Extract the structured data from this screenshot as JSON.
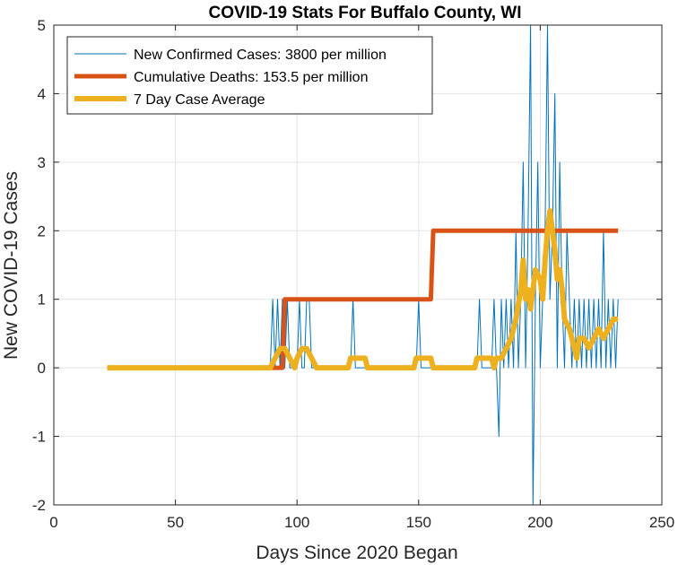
{
  "chart_data": {
    "type": "line",
    "title": "COVID-19 Stats For Buffalo County, WI",
    "xlabel": "Days Since 2020 Began",
    "ylabel": "New COVID-19 Cases",
    "xlim": [
      0,
      250
    ],
    "ylim": [
      -2,
      5
    ],
    "xticks": [
      0,
      50,
      100,
      150,
      200,
      250
    ],
    "yticks": [
      -2,
      -1,
      0,
      1,
      2,
      3,
      4,
      5
    ],
    "grid": true,
    "legend_position": "top-left",
    "series": [
      {
        "name": "New Confirmed Cases: 3800 per million",
        "color": "#0072BD",
        "points": [
          [
            22,
            0
          ],
          [
            89,
            0
          ],
          [
            90,
            1
          ],
          [
            91,
            0
          ],
          [
            92,
            1
          ],
          [
            93,
            0
          ],
          [
            94,
            1
          ],
          [
            95,
            0
          ],
          [
            96,
            1
          ],
          [
            97,
            0
          ],
          [
            100,
            0
          ],
          [
            101,
            1
          ],
          [
            102,
            0
          ],
          [
            103,
            0
          ],
          [
            104,
            1
          ],
          [
            105,
            1
          ],
          [
            106,
            0
          ],
          [
            122,
            0
          ],
          [
            123,
            1
          ],
          [
            124,
            0
          ],
          [
            149,
            0
          ],
          [
            150,
            1
          ],
          [
            151,
            0
          ],
          [
            174,
            0
          ],
          [
            175,
            1
          ],
          [
            176,
            0
          ],
          [
            180,
            0
          ],
          [
            181,
            1
          ],
          [
            182,
            0
          ],
          [
            183,
            -1
          ],
          [
            184,
            1
          ],
          [
            185,
            0
          ],
          [
            186,
            1
          ],
          [
            187,
            0
          ],
          [
            188,
            1
          ],
          [
            189,
            0
          ],
          [
            190,
            2
          ],
          [
            191,
            0
          ],
          [
            192,
            1
          ],
          [
            193,
            3
          ],
          [
            194,
            0
          ],
          [
            195,
            2
          ],
          [
            196,
            5
          ],
          [
            197,
            -2
          ],
          [
            198,
            1
          ],
          [
            199,
            3
          ],
          [
            200,
            0
          ],
          [
            201,
            1
          ],
          [
            202,
            2
          ],
          [
            203,
            5
          ],
          [
            204,
            1
          ],
          [
            205,
            2
          ],
          [
            206,
            4
          ],
          [
            207,
            0
          ],
          [
            208,
            3
          ],
          [
            209,
            1
          ],
          [
            210,
            0
          ],
          [
            211,
            2
          ],
          [
            212,
            1
          ],
          [
            213,
            0
          ],
          [
            214,
            1
          ],
          [
            215,
            0
          ],
          [
            216,
            1
          ],
          [
            217,
            0
          ],
          [
            218,
            1
          ],
          [
            219,
            0
          ],
          [
            220,
            1
          ],
          [
            221,
            0
          ],
          [
            222,
            1
          ],
          [
            223,
            0
          ],
          [
            224,
            1
          ],
          [
            225,
            0
          ],
          [
            226,
            2
          ],
          [
            227,
            0
          ],
          [
            228,
            1
          ],
          [
            229,
            0
          ],
          [
            230,
            1
          ],
          [
            231,
            0
          ],
          [
            232,
            1
          ]
        ]
      },
      {
        "name": "Cumulative Deaths: 153.5 per million",
        "color": "#D95319",
        "points": [
          [
            22,
            0
          ],
          [
            94,
            0
          ],
          [
            95,
            1
          ],
          [
            155,
            1
          ],
          [
            156,
            2
          ],
          [
            232,
            2
          ]
        ]
      },
      {
        "name": "7 Day Case Average",
        "color": "#EDB120",
        "points": [
          [
            22,
            0
          ],
          [
            89,
            0
          ],
          [
            91,
            0.14
          ],
          [
            93,
            0.28
          ],
          [
            95,
            0.28
          ],
          [
            97,
            0.14
          ],
          [
            99,
            0
          ],
          [
            100,
            0.14
          ],
          [
            102,
            0.28
          ],
          [
            104,
            0.28
          ],
          [
            106,
            0.14
          ],
          [
            108,
            0
          ],
          [
            121,
            0
          ],
          [
            122,
            0.14
          ],
          [
            128,
            0.14
          ],
          [
            129,
            0
          ],
          [
            148,
            0
          ],
          [
            149,
            0.14
          ],
          [
            155,
            0.14
          ],
          [
            156,
            0
          ],
          [
            173,
            0
          ],
          [
            174,
            0.14
          ],
          [
            180,
            0.14
          ],
          [
            181,
            0
          ],
          [
            182,
            0.14
          ],
          [
            184,
            0.14
          ],
          [
            186,
            0.28
          ],
          [
            188,
            0.43
          ],
          [
            190,
            0.71
          ],
          [
            192,
            1.14
          ],
          [
            193,
            1.57
          ],
          [
            194,
            1.0
          ],
          [
            195,
            1.14
          ],
          [
            196,
            0.86
          ],
          [
            198,
            1.43
          ],
          [
            200,
            1.29
          ],
          [
            201,
            1.0
          ],
          [
            202,
            1.57
          ],
          [
            203,
            2.0
          ],
          [
            204,
            2.29
          ],
          [
            205,
            2.0
          ],
          [
            206,
            1.71
          ],
          [
            207,
            1.29
          ],
          [
            208,
            1.43
          ],
          [
            209,
            1.14
          ],
          [
            210,
            0.71
          ],
          [
            212,
            0.57
          ],
          [
            214,
            0.29
          ],
          [
            215,
            0.14
          ],
          [
            216,
            0.43
          ],
          [
            218,
            0.43
          ],
          [
            220,
            0.29
          ],
          [
            222,
            0.43
          ],
          [
            224,
            0.57
          ],
          [
            226,
            0.43
          ],
          [
            228,
            0.57
          ],
          [
            230,
            0.71
          ],
          [
            232,
            0.71
          ]
        ]
      }
    ]
  }
}
